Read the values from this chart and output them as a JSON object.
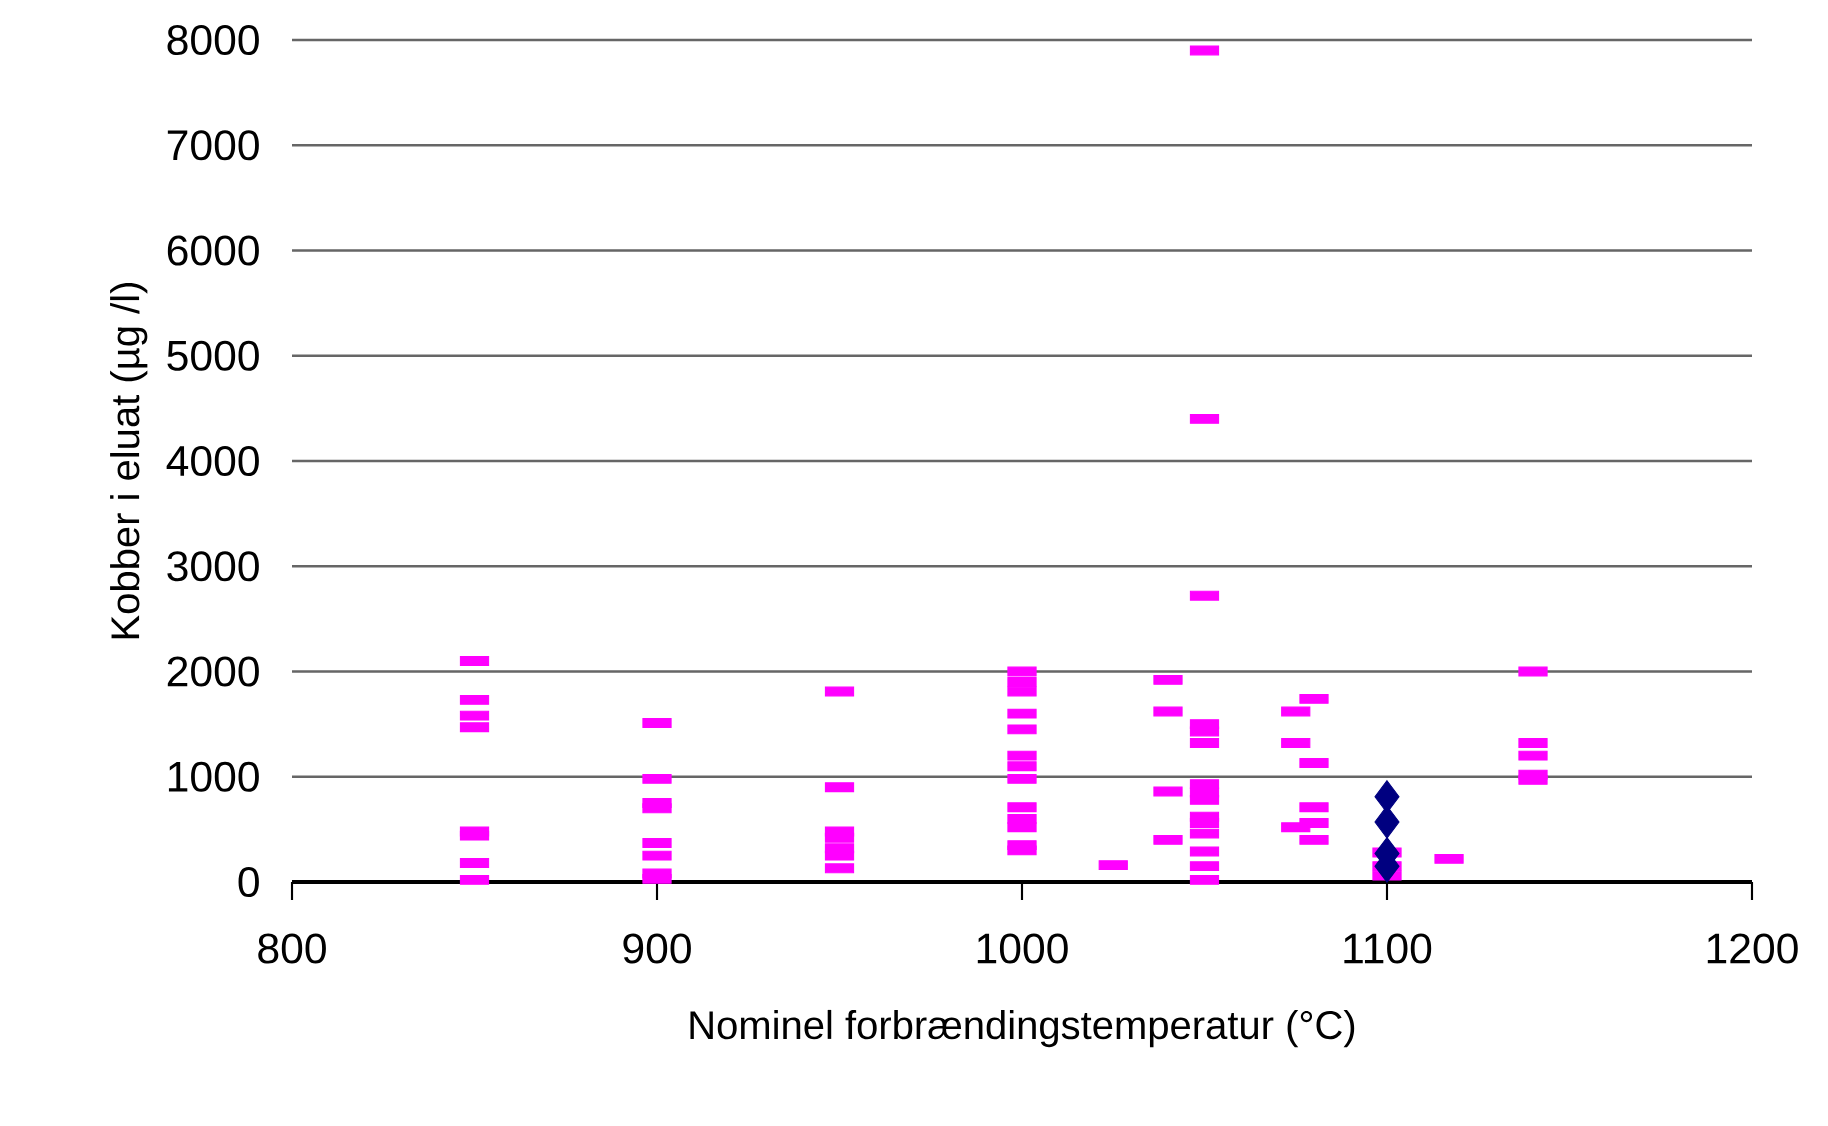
{
  "chart_data": {
    "type": "scatter",
    "xlabel": "Nominel forbrændingstemperatur (°C)",
    "ylabel": "Kobber i eluat (µg /l)",
    "xlim": [
      800,
      1200
    ],
    "xticks": [
      800,
      900,
      1000,
      1100,
      1200
    ],
    "ylim": [
      0,
      8000
    ],
    "yticks": [
      0,
      1000,
      2000,
      3000,
      4000,
      5000,
      6000,
      7000,
      8000
    ],
    "grid": "y",
    "series": [
      {
        "color": "#ff00ff",
        "marker": "square",
        "x": [
          850,
          850,
          850,
          850,
          850,
          850,
          850,
          850,
          900,
          900,
          900,
          900,
          900,
          900,
          900,
          900,
          950,
          950,
          950,
          950,
          950,
          950,
          950,
          1000,
          1000,
          1000,
          1000,
          1000,
          1000,
          1000,
          1000,
          1000,
          1000,
          1000,
          1000,
          1000,
          1025,
          1040,
          1040,
          1040,
          1040,
          1050,
          1050,
          1050,
          1050,
          1050,
          1050,
          1050,
          1050,
          1050,
          1050,
          1050,
          1050,
          1050,
          1050,
          1050,
          1075,
          1075,
          1075,
          1080,
          1080,
          1080,
          1080,
          1080,
          1100,
          1100,
          1100,
          1117,
          1140,
          1140,
          1140,
          1140,
          1140
        ],
        "values": [
          2100,
          1730,
          1580,
          1470,
          480,
          440,
          180,
          20,
          1510,
          980,
          750,
          700,
          370,
          250,
          80,
          30,
          1810,
          900,
          480,
          420,
          320,
          250,
          130,
          2000,
          1900,
          1810,
          1600,
          1450,
          1200,
          1100,
          980,
          710,
          600,
          520,
          350,
          300,
          160,
          1920,
          1620,
          860,
          400,
          7900,
          4400,
          2720,
          1500,
          1430,
          1320,
          930,
          850,
          780,
          620,
          560,
          460,
          290,
          150,
          20,
          1620,
          1320,
          520,
          1740,
          1130,
          710,
          560,
          400,
          280,
          150,
          60,
          220,
          2000,
          1320,
          1200,
          1020,
          970
        ]
      },
      {
        "color": "#000080",
        "marker": "diamond",
        "x": [
          1100,
          1100,
          1100,
          1100
        ],
        "values": [
          810,
          570,
          270,
          150
        ]
      }
    ]
  }
}
